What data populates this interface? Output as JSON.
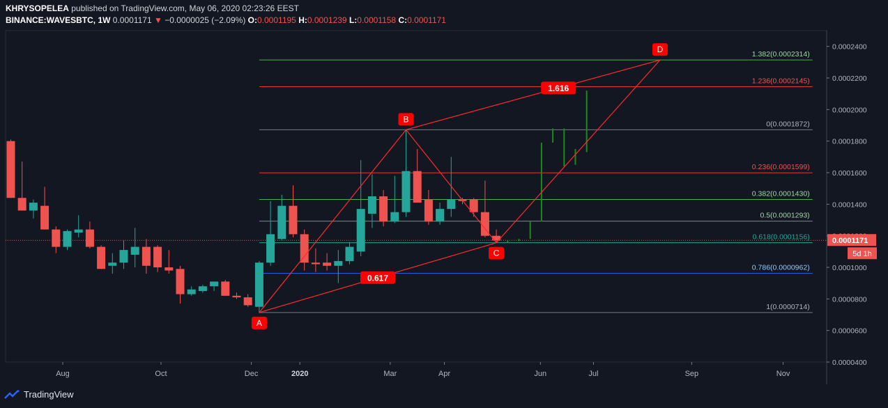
{
  "header": {
    "author": "KHRYSOPELEA",
    "published": "published on TradingView.com, May 06, 2020 02:23:26 EEST",
    "symbol": "BINANCE:WAVESBTC, 1W",
    "last": "0.0001171",
    "down_arrow": "▼",
    "change": "−0.0000025 (−2.09%)",
    "o_label": "O:",
    "o_value": "0.0001195",
    "h_label": "H:",
    "h_value": "0.0001239",
    "l_label": "L:",
    "l_value": "0.0001158",
    "c_label": "C:",
    "c_value": "0.0001171"
  },
  "footer": {
    "brand": "TradingView"
  },
  "colors": {
    "background": "#131722",
    "up": "#26a69a",
    "down": "#ef5350",
    "projection": "#1b8a1b",
    "harmonic": "#ff2b2b",
    "grid": "#2a2e39"
  },
  "chart_data": {
    "type": "candlestick",
    "title": "",
    "symbol": "BINANCE:WAVESBTC",
    "interval": "1W",
    "ylim": [
      4e-05,
      0.00025
    ],
    "y_ticks": [
      "0.0002400",
      "0.0002200",
      "0.0002000",
      "0.0001800",
      "0.0001600",
      "0.0001400",
      "0.0001200",
      "0.0001000",
      "0.0000800",
      "0.0000600",
      "0.0000400"
    ],
    "x_ticks": [
      {
        "label": "Aug",
        "bar": 4.6
      },
      {
        "label": "Oct",
        "bar": 13.3
      },
      {
        "label": "Dec",
        "bar": 21.3
      },
      {
        "label": "2020",
        "bar": 25.6
      },
      {
        "label": "Mar",
        "bar": 33.6
      },
      {
        "label": "Apr",
        "bar": 38.4
      },
      {
        "label": "Jun",
        "bar": 46.9
      },
      {
        "label": "Jul",
        "bar": 51.6
      },
      {
        "label": "Sep",
        "bar": 60.3
      },
      {
        "label": "Nov",
        "bar": 68.4
      }
    ],
    "last_price_label": "0.0001171",
    "countdown_label": "5d 1h",
    "candles": [
      {
        "o": 0.00018,
        "h": 0.000181,
        "l": 0.000144,
        "c": 0.000144
      },
      {
        "o": 0.000144,
        "h": 0.000167,
        "l": 0.000136,
        "c": 0.000136
      },
      {
        "o": 0.000136,
        "h": 0.000143,
        "l": 0.000131,
        "c": 0.000141
      },
      {
        "o": 0.000139,
        "h": 0.000151,
        "l": 0.000124,
        "c": 0.000124
      },
      {
        "o": 0.000124,
        "h": 0.000126,
        "l": 0.000109,
        "c": 0.000113
      },
      {
        "o": 0.000113,
        "h": 0.000124,
        "l": 0.000111,
        "c": 0.000123
      },
      {
        "o": 0.000122,
        "h": 0.000133,
        "l": 0.000119,
        "c": 0.000124
      },
      {
        "o": 0.000124,
        "h": 0.000129,
        "l": 0.000112,
        "c": 0.000113
      },
      {
        "o": 0.000113,
        "h": 0.000114,
        "l": 9.9e-05,
        "c": 9.9e-05
      },
      {
        "o": 0.000101,
        "h": 0.000109,
        "l": 9.6e-05,
        "c": 0.000103
      },
      {
        "o": 0.000103,
        "h": 0.000117,
        "l": 9.9e-05,
        "c": 0.000111
      },
      {
        "o": 0.000108,
        "h": 0.000125,
        "l": 0.0001,
        "c": 0.000113
      },
      {
        "o": 0.000113,
        "h": 0.000118,
        "l": 9.6e-05,
        "c": 0.000101
      },
      {
        "o": 0.000113,
        "h": 0.000114,
        "l": 9.7e-05,
        "c": 0.0001
      },
      {
        "o": 0.0001,
        "h": 0.000111,
        "l": 9.6e-05,
        "c": 9.8e-05
      },
      {
        "o": 9.9e-05,
        "h": 0.000101,
        "l": 7.7e-05,
        "c": 8.3e-05
      },
      {
        "o": 8.3e-05,
        "h": 8.8e-05,
        "l": 8.2e-05,
        "c": 8.6e-05
      },
      {
        "o": 8.5e-05,
        "h": 8.9e-05,
        "l": 8.4e-05,
        "c": 8.8e-05
      },
      {
        "o": 8.8e-05,
        "h": 9.1e-05,
        "l": 8.5e-05,
        "c": 9.1e-05
      },
      {
        "o": 9.1e-05,
        "h": 9.2e-05,
        "l": 8.2e-05,
        "c": 8.2e-05
      },
      {
        "o": 8.2e-05,
        "h": 8.4e-05,
        "l": 8e-05,
        "c": 8.1e-05
      },
      {
        "o": 8.1e-05,
        "h": 8.3e-05,
        "l": 7.5e-05,
        "c": 7.6e-05
      },
      {
        "o": 7.5e-05,
        "h": 0.000104,
        "l": 7.1e-05,
        "c": 0.000103
      },
      {
        "o": 0.000103,
        "h": 0.000142,
        "l": 0.000101,
        "c": 0.000121
      },
      {
        "o": 0.000118,
        "h": 0.000146,
        "l": 0.000117,
        "c": 0.000139
      },
      {
        "o": 0.000139,
        "h": 0.000152,
        "l": 0.000119,
        "c": 0.000121
      },
      {
        "o": 0.000121,
        "h": 0.000124,
        "l": 9.8e-05,
        "c": 0.000103
      },
      {
        "o": 0.000103,
        "h": 0.000112,
        "l": 9.7e-05,
        "c": 0.000102
      },
      {
        "o": 0.000103,
        "h": 0.000109,
        "l": 9.8e-05,
        "c": 0.000101
      },
      {
        "o": 0.000101,
        "h": 0.000111,
        "l": 9e-05,
        "c": 0.000104
      },
      {
        "o": 0.000104,
        "h": 0.000116,
        "l": 0.000102,
        "c": 0.000113
      },
      {
        "o": 0.00011,
        "h": 0.000168,
        "l": 0.000107,
        "c": 0.000137
      },
      {
        "o": 0.000134,
        "h": 0.000159,
        "l": 0.000125,
        "c": 0.000145
      },
      {
        "o": 0.000145,
        "h": 0.000149,
        "l": 0.000126,
        "c": 0.000129
      },
      {
        "o": 0.000129,
        "h": 0.000158,
        "l": 0.000128,
        "c": 0.000135
      },
      {
        "o": 0.000135,
        "h": 0.000187,
        "l": 0.000132,
        "c": 0.000161
      },
      {
        "o": 0.000161,
        "h": 0.000175,
        "l": 0.000141,
        "c": 0.000141
      },
      {
        "o": 0.000143,
        "h": 0.000149,
        "l": 0.000127,
        "c": 0.000129
      },
      {
        "o": 0.000129,
        "h": 0.000141,
        "l": 0.000127,
        "c": 0.000137
      },
      {
        "o": 0.000137,
        "h": 0.00017,
        "l": 0.000132,
        "c": 0.000143
      },
      {
        "o": 0.000143,
        "h": 0.000144,
        "l": 0.00014,
        "c": 0.000142
      },
      {
        "o": 0.000143,
        "h": 0.000144,
        "l": 0.000132,
        "c": 0.000135
      },
      {
        "o": 0.000135,
        "h": 0.000155,
        "l": 0.000119,
        "c": 0.00012
      },
      {
        "o": 0.00012,
        "h": 0.000124,
        "l": 0.000116,
        "c": 0.000117
      }
    ],
    "projection_bars": [
      {
        "bar": 44,
        "from": 0.000117,
        "to": 0.000117
      },
      {
        "bar": 45,
        "from": 0.000117,
        "to": 0.000118
      },
      {
        "bar": 46,
        "from": 0.000118,
        "to": 0.000129
      },
      {
        "bar": 47,
        "from": 0.000129,
        "to": 0.000179
      },
      {
        "bar": 48,
        "from": 0.000179,
        "to": 0.000188
      },
      {
        "bar": 49,
        "from": 0.000164,
        "to": 0.000188
      },
      {
        "bar": 50,
        "from": 0.000165,
        "to": 0.000175
      },
      {
        "bar": 51,
        "from": 0.000173,
        "to": 0.000212
      }
    ],
    "fib_levels": [
      {
        "label": "1.382(0.0002314)",
        "value": 0.0002314,
        "color": "#4caf50",
        "text_color": "#a5d6a7"
      },
      {
        "label": "1.236(0.0002145)",
        "value": 0.0002145,
        "color": "#e53935",
        "text_color": "#ef5350"
      },
      {
        "label": "0(0.0001872)",
        "value": 0.0001872,
        "color": "#787b86",
        "text_color": "#b2b5be"
      },
      {
        "label": "0.236(0.0001599)",
        "value": 0.0001599,
        "color": "#e53935",
        "text_color": "#ef5350"
      },
      {
        "label": "0.382(0.0001430)",
        "value": 0.000143,
        "color": "#4caf50",
        "text_color": "#a5d6a7"
      },
      {
        "label": "0.5(0.0001293)",
        "value": 0.0001293,
        "color": "#4caf50",
        "text_color": "#a5d6a7"
      },
      {
        "label": "0.618(0.0001156)",
        "value": 0.0001156,
        "color": "#26a69a",
        "text_color": "#26a69a"
      },
      {
        "label": "0.786(0.0000962)",
        "value": 9.62e-05,
        "color": "#2962ff",
        "text_color": "#90caf9"
      },
      {
        "label": "1(0.0000714)",
        "value": 7.14e-05,
        "color": "#787b86",
        "text_color": "#b2b5be"
      }
    ],
    "fib_start_bar": 22,
    "fib_end_bar": 71,
    "harmonic_points": [
      {
        "label": "A",
        "bar": 22,
        "value": 7.14e-05,
        "place": "below"
      },
      {
        "label": "B",
        "bar": 35,
        "value": 0.0001872,
        "place": "above"
      },
      {
        "label": "C",
        "bar": 43,
        "value": 0.0001156,
        "place": "below"
      },
      {
        "label": "D",
        "bar": 57.5,
        "value": 0.0002314,
        "place": "above"
      }
    ],
    "ratio_labels": [
      {
        "text": "0.617",
        "between": [
          "A",
          "C"
        ],
        "t": 0.5
      },
      {
        "text": "1.616",
        "between": [
          "B",
          "D"
        ],
        "t": 0.6
      }
    ]
  }
}
